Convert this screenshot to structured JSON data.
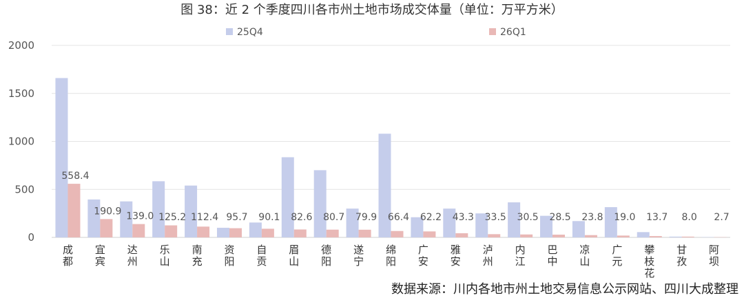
{
  "chart_data": {
    "type": "bar",
    "title": "图 38：近 2 个季度四川各市州土地市场成交体量（单位：万平方米）",
    "categories": [
      "成都",
      "宜宾",
      "达州",
      "乐山",
      "南充",
      "资阳",
      "自贡",
      "眉山",
      "德阳",
      "遂宁",
      "绵阳",
      "广安",
      "雅安",
      "泸州",
      "内江",
      "巴中",
      "凉山",
      "广元",
      "攀枝花",
      "甘孜",
      "阿坝"
    ],
    "series": [
      {
        "name": "25Q4",
        "color": "#c5cdeb",
        "values": [
          1660,
          395,
          375,
          585,
          540,
          100,
          155,
          835,
          700,
          300,
          1080,
          210,
          300,
          250,
          365,
          225,
          170,
          315,
          55,
          8,
          3
        ]
      },
      {
        "name": "26Q1",
        "color": "#e9b8b6",
        "values": [
          558.4,
          190.9,
          139.0,
          125.2,
          112.4,
          95.7,
          90.1,
          82.6,
          80.7,
          79.9,
          66.4,
          62.2,
          43.3,
          33.5,
          30.5,
          28.5,
          23.8,
          19.0,
          13.7,
          8.0,
          2.7
        ]
      }
    ],
    "data_labels": [
      "558.4",
      "190.9",
      "139.0",
      "125.2",
      "112.4",
      "95.7",
      "90.1",
      "82.6",
      "80.7",
      "79.9",
      "66.4",
      "62.2",
      "43.3",
      "33.5",
      "30.5",
      "28.5",
      "23.8",
      "19.0",
      "13.7",
      "8.0",
      "2.7"
    ],
    "ylim": [
      0,
      2000
    ],
    "yticks": [
      0,
      500,
      1000,
      1500,
      2000
    ],
    "ytick_labels": [
      "0",
      "500",
      "1000",
      "1500",
      "2000"
    ],
    "grid": true,
    "legend": "top-center",
    "xlabel": "",
    "ylabel": ""
  },
  "source_text": "数据来源：川内各地市州土地交易信息公示网站、四川大成整理"
}
